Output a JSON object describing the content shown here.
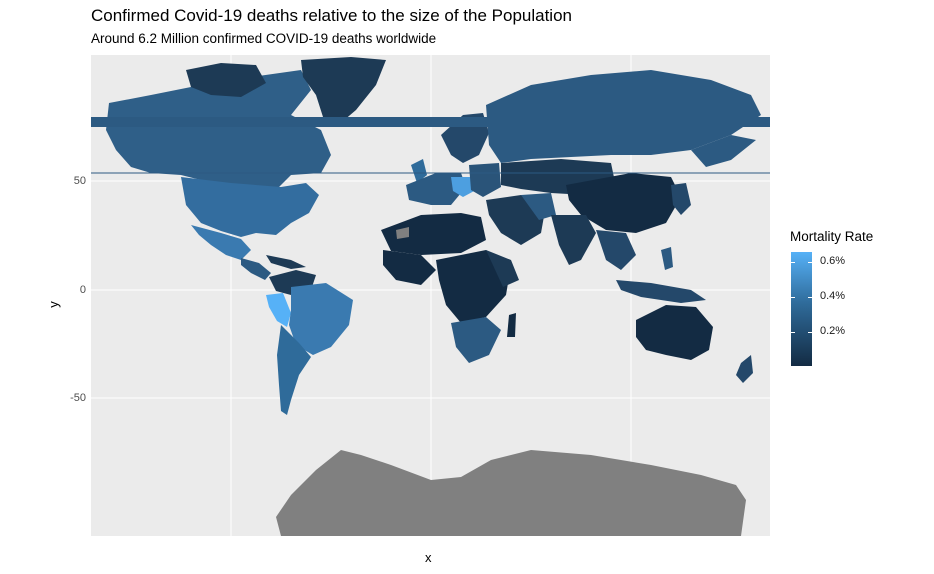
{
  "chart_data": {
    "type": "map",
    "title": "Confirmed Covid-19 deaths relative to the size of the Population",
    "subtitle": "Around 6.2 Million confirmed COVID-19 deaths worldwide",
    "xlabel": "x",
    "ylabel": "y",
    "y_ticks": [
      50,
      0,
      -50
    ],
    "ylim": [
      -90,
      85
    ],
    "grid": true,
    "legend": {
      "title": "Mortality Rate",
      "placement": "right",
      "labels": [
        "0.6%",
        "0.4%",
        "0.2%"
      ],
      "values": [
        0.6,
        0.4,
        0.2
      ],
      "range": [
        0.0,
        0.66
      ],
      "low_color": "#132b43",
      "high_color": "#56b1f7"
    },
    "colors": {
      "panel_background": "#ebebeb",
      "missing_data": "#808080",
      "grid": "#ffffff"
    }
  }
}
